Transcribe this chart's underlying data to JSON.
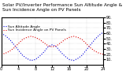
{
  "title": "Solar PV/Inverter Performance Sun Altitude Angle & Sun Incidence Angle on PV Panels",
  "legend_labels": [
    "Sun Altitude Angle",
    "Sun Incidence Angle on PV Panels"
  ],
  "line_colors": [
    "#0000dd",
    "#dd0000"
  ],
  "x_values": [
    0,
    1,
    2,
    3,
    4,
    5,
    6,
    7,
    8,
    9,
    10,
    11,
    12,
    13,
    14,
    15,
    16,
    17,
    18,
    19,
    20,
    21,
    22,
    23,
    24
  ],
  "altitude_y": [
    60,
    55,
    48,
    38,
    28,
    18,
    12,
    8,
    10,
    16,
    24,
    34,
    38,
    34,
    24,
    16,
    10,
    8,
    12,
    18,
    28,
    38,
    48,
    56,
    62
  ],
  "incidence_y": [
    20,
    22,
    26,
    32,
    40,
    48,
    52,
    54,
    52,
    48,
    42,
    36,
    34,
    36,
    42,
    48,
    52,
    54,
    52,
    48,
    40,
    32,
    26,
    22,
    20
  ],
  "ylim": [
    0,
    90
  ],
  "xlim": [
    0,
    24
  ],
  "ytick_vals": [
    10,
    20,
    30,
    40,
    50,
    60,
    70,
    80,
    90
  ],
  "ytick_labels": [
    "10.",
    "20.",
    "30.",
    "40.",
    "50.",
    "60.",
    "70.",
    "80.",
    "90."
  ],
  "xtick_vals": [
    0,
    4,
    8,
    12,
    16,
    20,
    24
  ],
  "bg_color": "#ffffff",
  "grid_color": "#888888",
  "title_fontsize": 4.2,
  "legend_fontsize": 3.2,
  "tick_fontsize": 3.5,
  "line_width": 0.8
}
